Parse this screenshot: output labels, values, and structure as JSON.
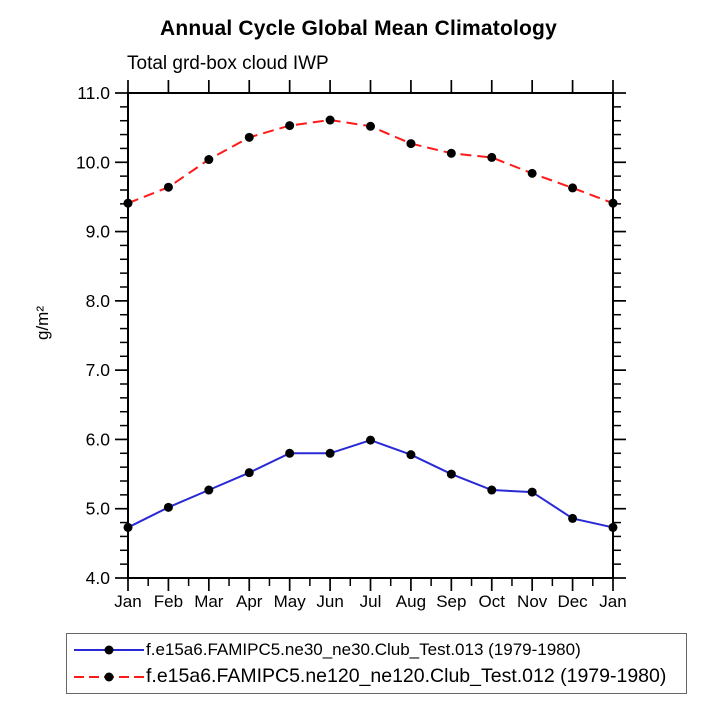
{
  "chart_data": {
    "type": "line",
    "title": "Annual Cycle Global Mean Climatology",
    "subtitle": "Total grd-box cloud IWP",
    "ylabel": "g/m²",
    "xlabel": "",
    "categories": [
      "Jan",
      "Feb",
      "Mar",
      "Apr",
      "May",
      "Jun",
      "Jul",
      "Aug",
      "Sep",
      "Oct",
      "Nov",
      "Dec",
      "Jan"
    ],
    "ylim": [
      4.0,
      11.0
    ],
    "ytick_major": 1.0,
    "ytick_minor": 0.2,
    "ytick_labels": [
      "4.0",
      "5.0",
      "6.0",
      "7.0",
      "8.0",
      "9.0",
      "10.0",
      "11.0"
    ],
    "grid": false,
    "legend_position": "bottom",
    "frame_color": "#000000",
    "marker": {
      "shape": "circle",
      "color": "#000000",
      "radius": 4.5
    },
    "series": [
      {
        "name": "f.e15a6.FAMIPC5.ne30_ne30.Club_Test.013 (1979-1980)",
        "color": "#2929d6",
        "style": "solid",
        "values": [
          4.73,
          5.02,
          5.27,
          5.52,
          5.8,
          5.8,
          5.99,
          5.78,
          5.5,
          5.27,
          5.24,
          4.86,
          4.73
        ]
      },
      {
        "name": "f.e15a6.FAMIPC5.ne120_ne120.Club_Test.012 (1979-1980)",
        "color": "#ff1a1a",
        "style": "dashed",
        "values": [
          9.41,
          9.64,
          10.04,
          10.36,
          10.53,
          10.61,
          10.52,
          10.27,
          10.13,
          10.07,
          9.84,
          9.63,
          9.41
        ]
      }
    ]
  }
}
